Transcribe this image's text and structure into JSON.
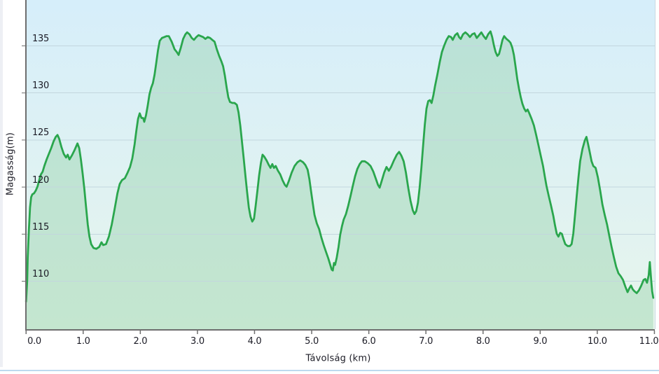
{
  "chart_data": {
    "type": "area",
    "title": "",
    "xlabel": "Távolság (km)",
    "ylabel": "Magasság(m)",
    "x_unit": "km",
    "y_unit": "m",
    "grid": "horizontal gridlines only",
    "legend": "none",
    "xlim": [
      0,
      11.05
    ],
    "ylim": [
      104.9,
      139.8
    ],
    "yticks": [
      110,
      115,
      120,
      125,
      130,
      135
    ],
    "xtick_labels": [
      "0.0",
      "1.0",
      "2.0",
      "3.0",
      "4.0",
      "5.0",
      "6.0",
      "7.0",
      "8.0",
      "9.0",
      "10.0",
      "11.0"
    ],
    "colors": {
      "line": "#2aa64d",
      "area_fill": "rgba(140,205,160,0.38)",
      "bg_top": "#d6eefa",
      "bg_bottom": "#e7f5ec",
      "gridline": "#c3d6de",
      "axis": "#6e6e6e",
      "tick_label": "#1c1c26",
      "plot_right_border": "#c9d9e2",
      "bottom_rule": "#bcd9ee",
      "left_strip": "#edeff4"
    },
    "points": [
      [
        0.0,
        107.8
      ],
      [
        0.02,
        110.0
      ],
      [
        0.03,
        112.5
      ],
      [
        0.05,
        115.5
      ],
      [
        0.07,
        117.8
      ],
      [
        0.09,
        118.9
      ],
      [
        0.11,
        119.2
      ],
      [
        0.14,
        119.3
      ],
      [
        0.17,
        119.6
      ],
      [
        0.2,
        120.0
      ],
      [
        0.23,
        120.7
      ],
      [
        0.26,
        121.3
      ],
      [
        0.29,
        121.6
      ],
      [
        0.32,
        122.2
      ],
      [
        0.36,
        122.9
      ],
      [
        0.4,
        123.5
      ],
      [
        0.44,
        124.1
      ],
      [
        0.48,
        124.8
      ],
      [
        0.52,
        125.3
      ],
      [
        0.55,
        125.5
      ],
      [
        0.58,
        125.1
      ],
      [
        0.62,
        124.2
      ],
      [
        0.66,
        123.5
      ],
      [
        0.7,
        123.1
      ],
      [
        0.73,
        123.4
      ],
      [
        0.76,
        122.9
      ],
      [
        0.8,
        123.3
      ],
      [
        0.85,
        123.9
      ],
      [
        0.9,
        124.6
      ],
      [
        0.93,
        124.1
      ],
      [
        0.96,
        122.9
      ],
      [
        0.99,
        121.4
      ],
      [
        1.02,
        119.8
      ],
      [
        1.05,
        117.9
      ],
      [
        1.08,
        116.0
      ],
      [
        1.11,
        114.7
      ],
      [
        1.14,
        113.9
      ],
      [
        1.18,
        113.5
      ],
      [
        1.23,
        113.4
      ],
      [
        1.28,
        113.6
      ],
      [
        1.32,
        114.1
      ],
      [
        1.35,
        113.8
      ],
      [
        1.4,
        113.9
      ],
      [
        1.45,
        114.7
      ],
      [
        1.5,
        116.0
      ],
      [
        1.55,
        117.6
      ],
      [
        1.6,
        119.3
      ],
      [
        1.64,
        120.3
      ],
      [
        1.68,
        120.7
      ],
      [
        1.73,
        120.9
      ],
      [
        1.77,
        121.4
      ],
      [
        1.82,
        122.1
      ],
      [
        1.86,
        123.0
      ],
      [
        1.9,
        124.5
      ],
      [
        1.93,
        125.9
      ],
      [
        1.96,
        127.2
      ],
      [
        1.99,
        127.8
      ],
      [
        2.02,
        127.3
      ],
      [
        2.05,
        127.3
      ],
      [
        2.07,
        126.9
      ],
      [
        2.1,
        127.6
      ],
      [
        2.13,
        128.6
      ],
      [
        2.16,
        129.8
      ],
      [
        2.19,
        130.5
      ],
      [
        2.22,
        131.0
      ],
      [
        2.25,
        131.9
      ],
      [
        2.28,
        133.2
      ],
      [
        2.31,
        134.5
      ],
      [
        2.34,
        135.5
      ],
      [
        2.38,
        135.8
      ],
      [
        2.42,
        135.9
      ],
      [
        2.46,
        136.0
      ],
      [
        2.5,
        136.0
      ],
      [
        2.55,
        135.4
      ],
      [
        2.6,
        134.6
      ],
      [
        2.64,
        134.3
      ],
      [
        2.67,
        134.0
      ],
      [
        2.71,
        134.8
      ],
      [
        2.75,
        135.7
      ],
      [
        2.79,
        136.2
      ],
      [
        2.82,
        136.4
      ],
      [
        2.86,
        136.2
      ],
      [
        2.9,
        135.8
      ],
      [
        2.94,
        135.6
      ],
      [
        2.98,
        135.9
      ],
      [
        3.02,
        136.1
      ],
      [
        3.06,
        136.0
      ],
      [
        3.1,
        135.9
      ],
      [
        3.14,
        135.7
      ],
      [
        3.18,
        135.9
      ],
      [
        3.22,
        135.8
      ],
      [
        3.26,
        135.6
      ],
      [
        3.3,
        135.4
      ],
      [
        3.34,
        134.6
      ],
      [
        3.38,
        133.9
      ],
      [
        3.42,
        133.3
      ],
      [
        3.45,
        132.8
      ],
      [
        3.48,
        131.8
      ],
      [
        3.51,
        130.6
      ],
      [
        3.54,
        129.5
      ],
      [
        3.57,
        129.0
      ],
      [
        3.61,
        128.9
      ],
      [
        3.65,
        128.9
      ],
      [
        3.69,
        128.7
      ],
      [
        3.72,
        127.9
      ],
      [
        3.75,
        126.5
      ],
      [
        3.78,
        124.8
      ],
      [
        3.81,
        123.0
      ],
      [
        3.84,
        121.2
      ],
      [
        3.87,
        119.4
      ],
      [
        3.9,
        117.8
      ],
      [
        3.93,
        116.8
      ],
      [
        3.96,
        116.3
      ],
      [
        3.99,
        116.6
      ],
      [
        4.02,
        118.0
      ],
      [
        4.05,
        119.6
      ],
      [
        4.08,
        121.2
      ],
      [
        4.11,
        122.5
      ],
      [
        4.14,
        123.4
      ],
      [
        4.17,
        123.2
      ],
      [
        4.21,
        122.8
      ],
      [
        4.25,
        122.3
      ],
      [
        4.28,
        122.0
      ],
      [
        4.31,
        122.4
      ],
      [
        4.34,
        122.0
      ],
      [
        4.37,
        122.2
      ],
      [
        4.41,
        121.7
      ],
      [
        4.45,
        121.3
      ],
      [
        4.49,
        120.7
      ],
      [
        4.53,
        120.2
      ],
      [
        4.56,
        120.0
      ],
      [
        4.6,
        120.6
      ],
      [
        4.65,
        121.5
      ],
      [
        4.7,
        122.2
      ],
      [
        4.75,
        122.6
      ],
      [
        4.8,
        122.8
      ],
      [
        4.85,
        122.6
      ],
      [
        4.89,
        122.3
      ],
      [
        4.93,
        121.8
      ],
      [
        4.96,
        120.8
      ],
      [
        4.99,
        119.5
      ],
      [
        5.02,
        118.2
      ],
      [
        5.05,
        117.0
      ],
      [
        5.09,
        116.1
      ],
      [
        5.13,
        115.5
      ],
      [
        5.17,
        114.6
      ],
      [
        5.21,
        113.8
      ],
      [
        5.25,
        113.1
      ],
      [
        5.29,
        112.4
      ],
      [
        5.32,
        111.8
      ],
      [
        5.35,
        111.2
      ],
      [
        5.37,
        111.1
      ],
      [
        5.39,
        111.9
      ],
      [
        5.41,
        111.7
      ],
      [
        5.44,
        112.5
      ],
      [
        5.47,
        113.6
      ],
      [
        5.5,
        114.9
      ],
      [
        5.53,
        115.8
      ],
      [
        5.56,
        116.5
      ],
      [
        5.6,
        117.1
      ],
      [
        5.64,
        118.0
      ],
      [
        5.68,
        119.0
      ],
      [
        5.72,
        120.1
      ],
      [
        5.76,
        121.1
      ],
      [
        5.8,
        121.9
      ],
      [
        5.84,
        122.4
      ],
      [
        5.88,
        122.7
      ],
      [
        5.93,
        122.7
      ],
      [
        5.98,
        122.5
      ],
      [
        6.03,
        122.2
      ],
      [
        6.08,
        121.6
      ],
      [
        6.12,
        120.9
      ],
      [
        6.16,
        120.2
      ],
      [
        6.19,
        119.9
      ],
      [
        6.23,
        120.7
      ],
      [
        6.27,
        121.5
      ],
      [
        6.31,
        122.1
      ],
      [
        6.35,
        121.7
      ],
      [
        6.39,
        122.1
      ],
      [
        6.44,
        122.8
      ],
      [
        6.49,
        123.4
      ],
      [
        6.53,
        123.7
      ],
      [
        6.57,
        123.3
      ],
      [
        6.61,
        122.7
      ],
      [
        6.65,
        121.5
      ],
      [
        6.69,
        119.9
      ],
      [
        6.73,
        118.5
      ],
      [
        6.77,
        117.5
      ],
      [
        6.8,
        117.1
      ],
      [
        6.83,
        117.4
      ],
      [
        6.86,
        118.3
      ],
      [
        6.89,
        119.9
      ],
      [
        6.92,
        122.0
      ],
      [
        6.95,
        124.3
      ],
      [
        6.98,
        126.6
      ],
      [
        7.01,
        128.3
      ],
      [
        7.04,
        129.1
      ],
      [
        7.07,
        129.2
      ],
      [
        7.1,
        128.9
      ],
      [
        7.13,
        129.7
      ],
      [
        7.16,
        130.7
      ],
      [
        7.2,
        131.9
      ],
      [
        7.24,
        133.2
      ],
      [
        7.28,
        134.3
      ],
      [
        7.32,
        135.0
      ],
      [
        7.36,
        135.6
      ],
      [
        7.4,
        136.0
      ],
      [
        7.44,
        135.9
      ],
      [
        7.47,
        135.6
      ],
      [
        7.51,
        136.1
      ],
      [
        7.55,
        136.3
      ],
      [
        7.58,
        135.9
      ],
      [
        7.61,
        135.7
      ],
      [
        7.65,
        136.2
      ],
      [
        7.69,
        136.4
      ],
      [
        7.73,
        136.2
      ],
      [
        7.77,
        135.9
      ],
      [
        7.81,
        136.2
      ],
      [
        7.85,
        136.3
      ],
      [
        7.89,
        135.8
      ],
      [
        7.93,
        136.1
      ],
      [
        7.97,
        136.4
      ],
      [
        8.01,
        136.0
      ],
      [
        8.05,
        135.7
      ],
      [
        8.09,
        136.2
      ],
      [
        8.13,
        136.5
      ],
      [
        8.16,
        135.9
      ],
      [
        8.19,
        135.0
      ],
      [
        8.22,
        134.3
      ],
      [
        8.25,
        133.9
      ],
      [
        8.28,
        134.1
      ],
      [
        8.31,
        134.8
      ],
      [
        8.34,
        135.6
      ],
      [
        8.37,
        136.0
      ],
      [
        8.41,
        135.7
      ],
      [
        8.45,
        135.5
      ],
      [
        8.48,
        135.3
      ],
      [
        8.51,
        134.8
      ],
      [
        8.54,
        134.0
      ],
      [
        8.57,
        132.7
      ],
      [
        8.6,
        131.4
      ],
      [
        8.63,
        130.4
      ],
      [
        8.66,
        129.5
      ],
      [
        8.69,
        128.8
      ],
      [
        8.72,
        128.3
      ],
      [
        8.75,
        128.0
      ],
      [
        8.78,
        128.2
      ],
      [
        8.81,
        127.8
      ],
      [
        8.85,
        127.2
      ],
      [
        8.89,
        126.5
      ],
      [
        8.93,
        125.5
      ],
      [
        8.97,
        124.4
      ],
      [
        9.01,
        123.3
      ],
      [
        9.05,
        122.2
      ],
      [
        9.08,
        121.1
      ],
      [
        9.11,
        120.1
      ],
      [
        9.15,
        119.0
      ],
      [
        9.19,
        118.0
      ],
      [
        9.23,
        116.9
      ],
      [
        9.26,
        115.9
      ],
      [
        9.29,
        115.0
      ],
      [
        9.32,
        114.7
      ],
      [
        9.35,
        115.1
      ],
      [
        9.38,
        115.0
      ],
      [
        9.41,
        114.4
      ],
      [
        9.44,
        113.9
      ],
      [
        9.48,
        113.7
      ],
      [
        9.52,
        113.7
      ],
      [
        9.55,
        113.9
      ],
      [
        9.58,
        115.0
      ],
      [
        9.61,
        117.0
      ],
      [
        9.64,
        119.0
      ],
      [
        9.67,
        121.0
      ],
      [
        9.7,
        122.7
      ],
      [
        9.74,
        124.0
      ],
      [
        9.78,
        124.9
      ],
      [
        9.81,
        125.3
      ],
      [
        9.84,
        124.5
      ],
      [
        9.87,
        123.6
      ],
      [
        9.9,
        122.7
      ],
      [
        9.93,
        122.2
      ],
      [
        9.97,
        122.0
      ],
      [
        10.01,
        121.0
      ],
      [
        10.05,
        119.6
      ],
      [
        10.09,
        118.1
      ],
      [
        10.13,
        117.0
      ],
      [
        10.17,
        116.0
      ],
      [
        10.21,
        114.8
      ],
      [
        10.25,
        113.6
      ],
      [
        10.29,
        112.5
      ],
      [
        10.33,
        111.5
      ],
      [
        10.37,
        110.8
      ],
      [
        10.41,
        110.5
      ],
      [
        10.45,
        110.1
      ],
      [
        10.49,
        109.4
      ],
      [
        10.53,
        108.8
      ],
      [
        10.56,
        109.2
      ],
      [
        10.59,
        109.5
      ],
      [
        10.62,
        109.1
      ],
      [
        10.65,
        108.9
      ],
      [
        10.69,
        108.7
      ],
      [
        10.73,
        109.0
      ],
      [
        10.77,
        109.5
      ],
      [
        10.81,
        110.1
      ],
      [
        10.84,
        110.2
      ],
      [
        10.87,
        109.8
      ],
      [
        10.9,
        110.6
      ],
      [
        10.92,
        112.0
      ],
      [
        10.94,
        110.3
      ],
      [
        10.96,
        108.9
      ],
      [
        10.98,
        108.2
      ]
    ]
  }
}
